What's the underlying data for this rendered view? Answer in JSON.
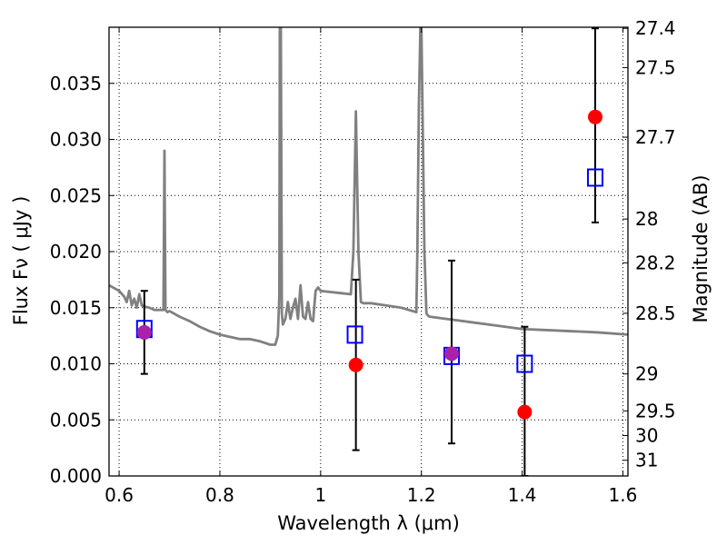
{
  "chart_data": {
    "type": "scatter",
    "title": "",
    "xlabel": "Wavelength  λ (μm)",
    "ylabel": "Flux  Fν  ( μJy )",
    "y2label": "Magnitude (AB)",
    "xlim": [
      0.58,
      1.61
    ],
    "ylim": [
      0.0,
      0.04
    ],
    "grid": true,
    "x_ticks": [
      0.6,
      0.8,
      1.0,
      1.2,
      1.4,
      1.6
    ],
    "x_tick_labels": [
      "0.6",
      "0.8",
      "1",
      "1.2",
      "1.4",
      "1.6"
    ],
    "y_ticks": [
      0.0,
      0.005,
      0.01,
      0.015,
      0.02,
      0.025,
      0.03,
      0.035
    ],
    "y_tick_labels": [
      "0.000",
      "0.005",
      "0.010",
      "0.015",
      "0.020",
      "0.025",
      "0.030",
      "0.035"
    ],
    "y2_ticks": [
      {
        "flux": 0.0399,
        "label": "27.4"
      },
      {
        "flux": 0.0364,
        "label": "27.5"
      },
      {
        "flux": 0.0302,
        "label": "27.7"
      },
      {
        "flux": 0.0229,
        "label": "28"
      },
      {
        "flux": 0.019,
        "label": "28.2"
      },
      {
        "flux": 0.0145,
        "label": "28.5"
      },
      {
        "flux": 0.0091,
        "label": "29"
      },
      {
        "flux": 0.0058,
        "label": "29.5"
      },
      {
        "flux": 0.0036,
        "label": "30"
      },
      {
        "flux": 0.0014,
        "label": "31"
      }
    ],
    "series": [
      {
        "kind": "line",
        "color": "#808080",
        "x": [
          0.58,
          0.6,
          0.61,
          0.615,
          0.62,
          0.625,
          0.63,
          0.635,
          0.64,
          0.645,
          0.65,
          0.66,
          0.67,
          0.68,
          0.688,
          0.69,
          0.692,
          0.694,
          0.696,
          0.7,
          0.72,
          0.74,
          0.76,
          0.78,
          0.8,
          0.82,
          0.84,
          0.86,
          0.88,
          0.9,
          0.91,
          0.915,
          0.918,
          0.919,
          0.921,
          0.923,
          0.925,
          0.93,
          0.935,
          0.94,
          0.945,
          0.95,
          0.955,
          0.96,
          0.965,
          0.97,
          0.975,
          0.98,
          0.985,
          0.99,
          0.995,
          1.0,
          1.02,
          1.04,
          1.06,
          1.065,
          1.07,
          1.075,
          1.08,
          1.085,
          1.1,
          1.13,
          1.16,
          1.19,
          1.192,
          1.195,
          1.198,
          1.2,
          1.203,
          1.206,
          1.21,
          1.213,
          1.216,
          1.25,
          1.3,
          1.35,
          1.4,
          1.45,
          1.5,
          1.55,
          1.61
        ],
        "y": [
          0.017,
          0.0165,
          0.016,
          0.0155,
          0.0165,
          0.0152,
          0.0158,
          0.015,
          0.0162,
          0.0152,
          0.0151,
          0.015,
          0.0148,
          0.0148,
          0.0148,
          0.029,
          0.0148,
          0.0147,
          0.0146,
          0.0147,
          0.0142,
          0.0138,
          0.0133,
          0.0129,
          0.0126,
          0.0124,
          0.0122,
          0.0122,
          0.012,
          0.0117,
          0.0117,
          0.0125,
          0.016,
          0.04,
          0.04,
          0.0145,
          0.0135,
          0.014,
          0.0155,
          0.014,
          0.015,
          0.0158,
          0.014,
          0.017,
          0.0142,
          0.014,
          0.0155,
          0.014,
          0.0138,
          0.0165,
          0.0168,
          0.0165,
          0.0164,
          0.0163,
          0.0162,
          0.02,
          0.0325,
          0.02,
          0.0155,
          0.0154,
          0.0154,
          0.0152,
          0.015,
          0.0146,
          0.02,
          0.033,
          0.04,
          0.04,
          0.03,
          0.02,
          0.0145,
          0.0143,
          0.0142,
          0.014,
          0.0137,
          0.0134,
          0.0131,
          0.013,
          0.0129,
          0.0128,
          0.0126
        ]
      },
      {
        "kind": "errorbar",
        "color": "#000000",
        "x": [
          0.65,
          1.07,
          1.26,
          1.405,
          1.545
        ],
        "low": [
          0.0091,
          0.0023,
          0.0029,
          0.0,
          0.0226
        ],
        "high": [
          0.0165,
          0.0175,
          0.0192,
          0.0133,
          0.0399
        ]
      },
      {
        "kind": "open-square",
        "color": "#0000ff",
        "x": [
          0.65,
          1.068,
          1.26,
          1.405,
          1.545
        ],
        "y": [
          0.0131,
          0.0126,
          0.0107,
          0.01,
          0.0266
        ]
      },
      {
        "kind": "filled-circle",
        "color": "#ff0000",
        "x": [
          0.65,
          1.07,
          1.26,
          1.405,
          1.545
        ],
        "y": [
          0.0128,
          0.0099,
          0.0109,
          0.0057,
          0.032
        ]
      }
    ],
    "overlap_color": "#aa22aa"
  }
}
